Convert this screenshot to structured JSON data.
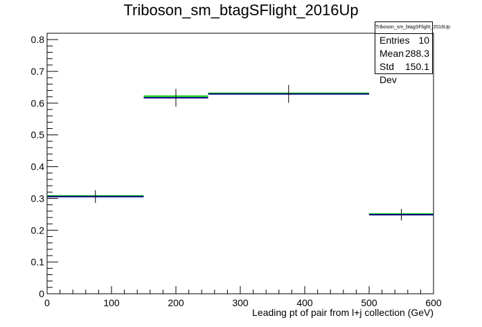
{
  "title": "Triboson_sm_btagSFlight_2016Up",
  "stats": {
    "name": "Triboson_sm_btagSFlight_2016Up",
    "rows": [
      {
        "label": "Entries",
        "value": "10"
      },
      {
        "label": "Mean",
        "value": "288.3"
      },
      {
        "label": "Std Dev",
        "value": "150.1"
      }
    ]
  },
  "chart_data": {
    "type": "histogram",
    "title": "Triboson_sm_btagSFlight_2016Up",
    "xlabel": "Leading pt of pair from l+j collection (GeV)",
    "ylabel": "",
    "xlim": [
      0,
      600
    ],
    "ylim": [
      0,
      0.82
    ],
    "xticks": [
      0,
      100,
      200,
      300,
      400,
      500,
      600
    ],
    "yticks": [
      0,
      0.1,
      0.2,
      0.3,
      0.4,
      0.5,
      0.6,
      0.7,
      0.8
    ],
    "grid": false,
    "series": [
      {
        "color": "#000080",
        "bins": [
          {
            "x_low": 0,
            "x_high": 150,
            "value": 0.306,
            "error": 0.02
          },
          {
            "x_low": 150,
            "x_high": 250,
            "value": 0.617,
            "error": 0.028
          },
          {
            "x_low": 250,
            "x_high": 500,
            "value": 0.629,
            "error": 0.028
          },
          {
            "x_low": 500,
            "x_high": 600,
            "value": 0.249,
            "error": 0.018
          }
        ]
      },
      {
        "color": "#00cc00",
        "bins": [
          {
            "x_low": 0,
            "x_high": 150,
            "value": 0.308
          },
          {
            "x_low": 150,
            "x_high": 250,
            "value": 0.622
          },
          {
            "x_low": 250,
            "x_high": 500,
            "value": 0.631
          },
          {
            "x_low": 500,
            "x_high": 600,
            "value": 0.251
          }
        ]
      }
    ]
  }
}
